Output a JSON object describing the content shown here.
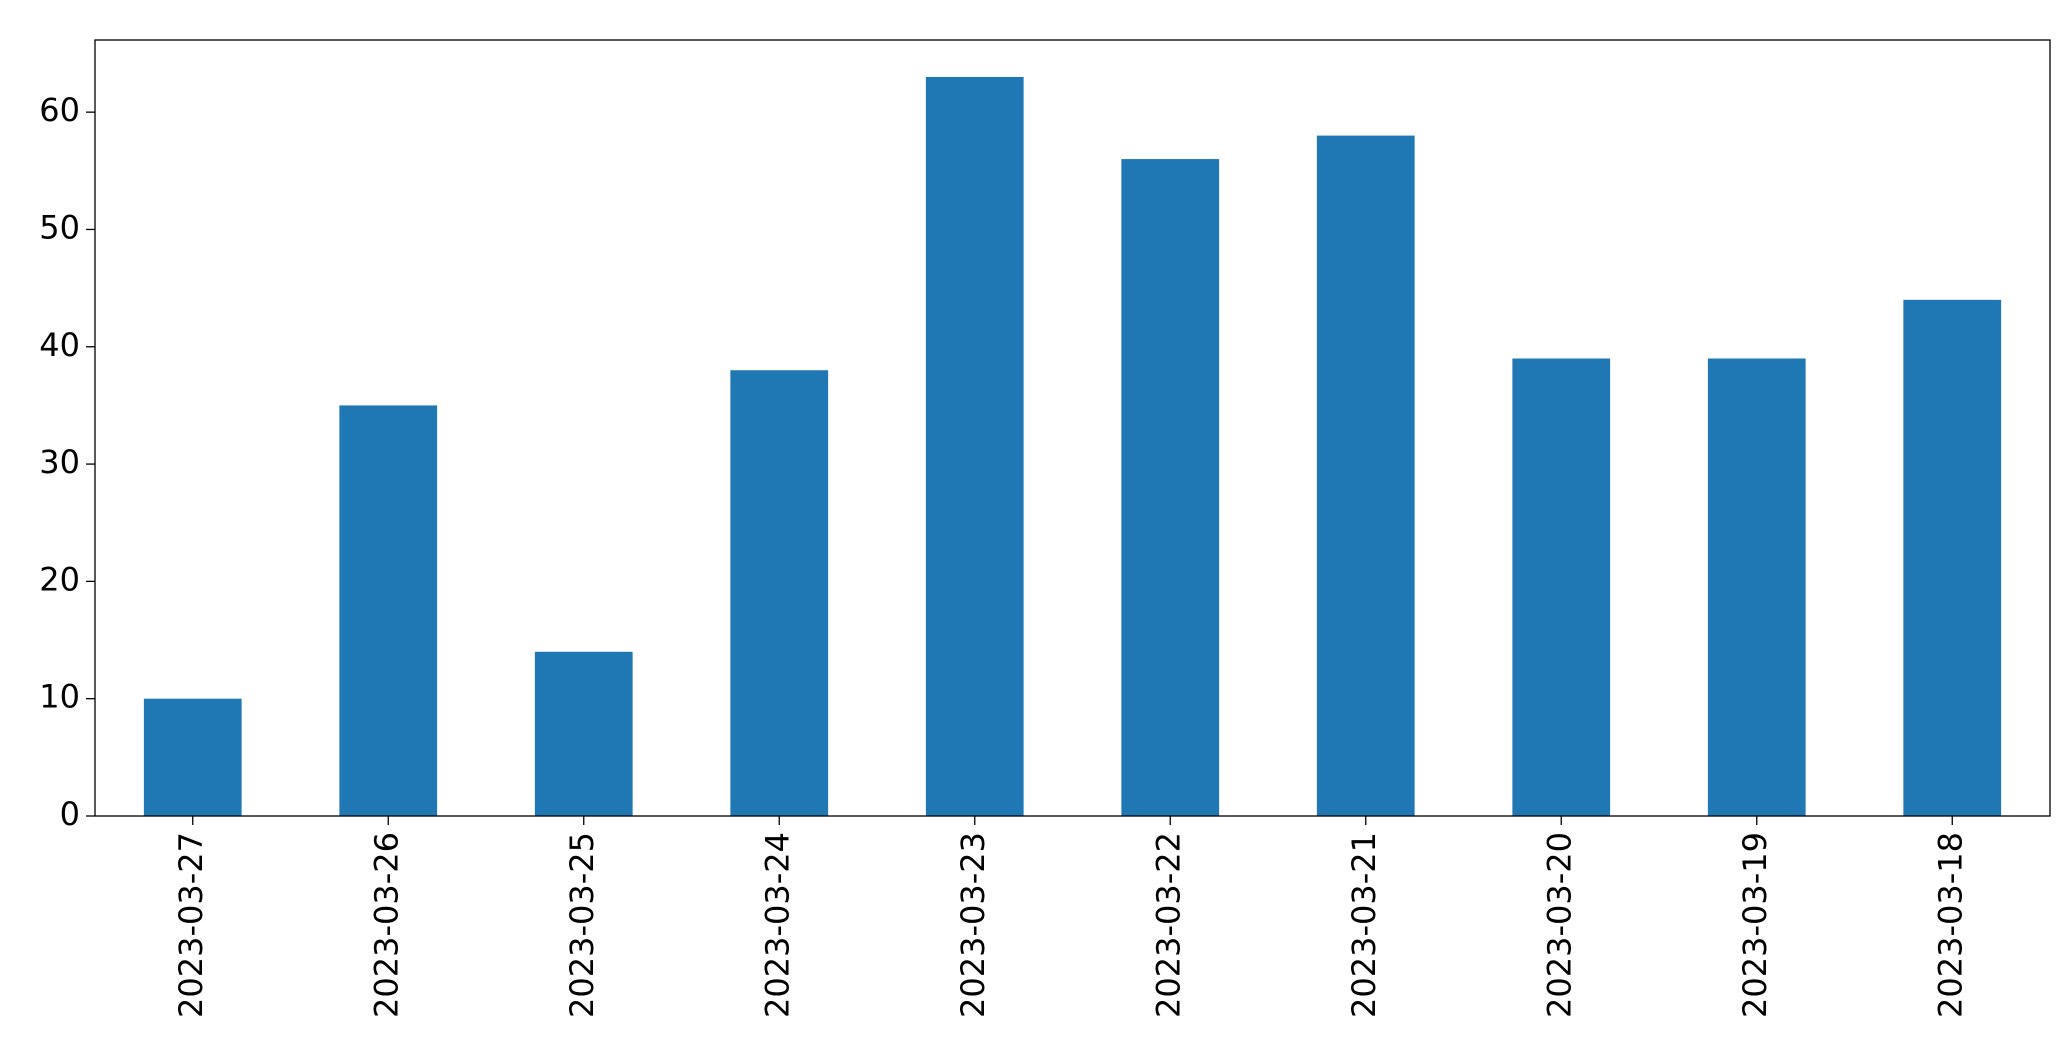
{
  "chart_data": {
    "type": "bar",
    "categories": [
      "2023-03-27",
      "2023-03-26",
      "2023-03-25",
      "2023-03-24",
      "2023-03-23",
      "2023-03-22",
      "2023-03-21",
      "2023-03-20",
      "2023-03-19",
      "2023-03-18"
    ],
    "values": [
      10,
      35,
      14,
      38,
      63,
      56,
      58,
      39,
      39,
      44
    ],
    "color": "#1f77b4",
    "ylim": [
      0,
      66.15
    ],
    "yticks": [
      0,
      10,
      20,
      30,
      40,
      50,
      60
    ],
    "grid": false
  }
}
